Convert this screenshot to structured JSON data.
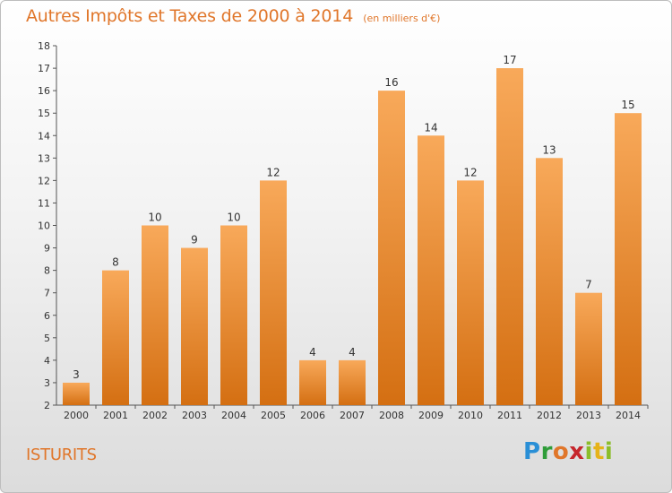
{
  "header": {
    "title": "Autres Impôts et Taxes de 2000 à 2014",
    "unit": "(en milliers d'€)"
  },
  "commune": "ISTURITS",
  "logo": {
    "text": "Proxiti"
  },
  "colors": {
    "bar_top": "#f8a95a",
    "bar_bottom": "#d46f12",
    "title": "#e0762a"
  },
  "chart_data": {
    "type": "bar",
    "title": "Autres Impôts et Taxes de 2000 à 2014",
    "subtitle": "(en milliers d'€)",
    "xlabel": "",
    "ylabel": "",
    "categories": [
      "2000",
      "2001",
      "2002",
      "2003",
      "2004",
      "2005",
      "2006",
      "2007",
      "2008",
      "2009",
      "2010",
      "2011",
      "2012",
      "2013",
      "2014"
    ],
    "values": [
      3,
      8,
      10,
      9,
      10,
      12,
      4,
      4,
      16,
      14,
      12,
      17,
      13,
      7,
      15
    ],
    "ylim": [
      2,
      18
    ],
    "yticks": [
      2,
      3,
      4,
      5,
      6,
      7,
      8,
      9,
      10,
      11,
      12,
      13,
      14,
      15,
      16,
      17,
      18
    ],
    "grid": false,
    "legend": "none",
    "data_labels": true
  }
}
